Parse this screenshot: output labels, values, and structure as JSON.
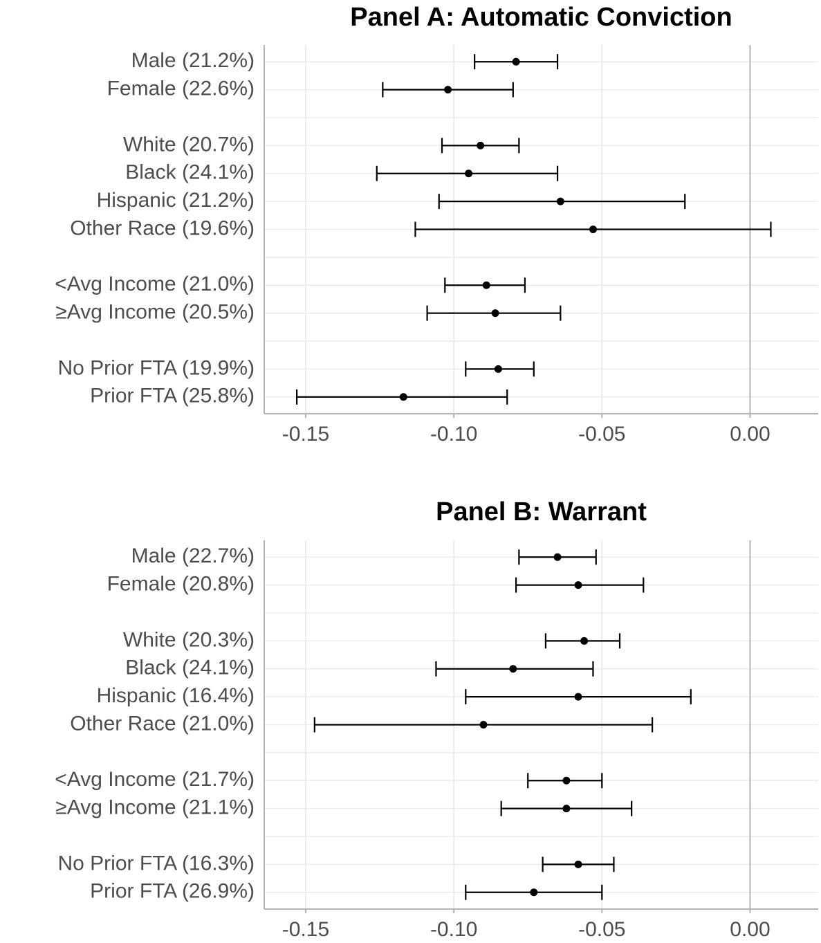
{
  "chart_data": [
    {
      "type": "errorbar",
      "title": "Panel A: Automatic Conviction",
      "categories": [
        "Male (21.2%)",
        "Female (22.6%)",
        null,
        "White (20.7%)",
        "Black (24.1%)",
        "Hispanic (21.2%)",
        "Other Race (19.6%)",
        null,
        "<Avg Income (21.0%)",
        "≥Avg Income (20.5%)",
        null,
        "No Prior FTA (19.9%)",
        "Prior FTA (25.8%)"
      ],
      "values": [
        -0.079,
        -0.102,
        null,
        -0.091,
        -0.095,
        -0.064,
        -0.053,
        null,
        -0.089,
        -0.086,
        null,
        -0.085,
        -0.117
      ],
      "lower": [
        -0.093,
        -0.124,
        null,
        -0.104,
        -0.126,
        -0.105,
        -0.113,
        null,
        -0.103,
        -0.109,
        null,
        -0.096,
        -0.153
      ],
      "upper": [
        -0.065,
        -0.08,
        null,
        -0.078,
        -0.065,
        -0.022,
        0.007,
        null,
        -0.076,
        -0.064,
        null,
        -0.073,
        -0.082
      ],
      "color": "#000000",
      "xlim": [
        -0.164,
        0.023
      ],
      "xticks": [
        -0.15,
        {
          "value": -0.1,
          "label": "-0.10"
        },
        -0.05,
        {
          "value": 0,
          "label": "0.00"
        }
      ],
      "vline": 0,
      "grid": true
    },
    {
      "type": "errorbar",
      "title": "Panel B: Warrant",
      "categories": [
        "Male (22.7%)",
        "Female (20.8%)",
        null,
        "White (20.3%)",
        "Black (24.1%)",
        "Hispanic (16.4%)",
        "Other Race (21.0%)",
        null,
        "<Avg Income (21.7%)",
        "≥Avg Income (21.1%)",
        null,
        "No Prior FTA (16.3%)",
        "Prior FTA (26.9%)"
      ],
      "values": [
        -0.065,
        -0.058,
        null,
        -0.056,
        -0.08,
        -0.058,
        -0.09,
        null,
        -0.062,
        -0.062,
        null,
        -0.058,
        -0.073
      ],
      "lower": [
        -0.078,
        -0.079,
        null,
        -0.069,
        -0.106,
        -0.096,
        -0.147,
        null,
        -0.075,
        -0.084,
        null,
        -0.07,
        -0.096
      ],
      "upper": [
        -0.052,
        -0.036,
        null,
        -0.044,
        -0.053,
        -0.02,
        -0.033,
        null,
        -0.05,
        -0.04,
        null,
        -0.046,
        -0.05
      ],
      "color": "#000000",
      "xlim": [
        -0.164,
        0.023
      ],
      "xticks": [
        -0.15,
        {
          "value": -0.1,
          "label": "-0.10"
        },
        -0.05,
        {
          "value": 0,
          "label": "0.00"
        }
      ],
      "vline": 0,
      "grid": true
    }
  ]
}
